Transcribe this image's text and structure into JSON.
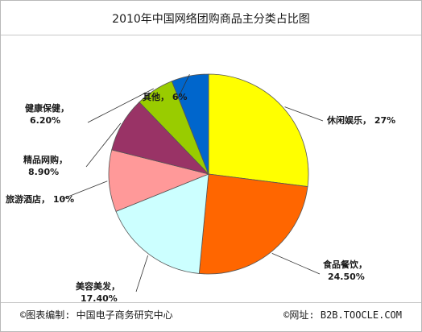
{
  "chart_data": {
    "type": "pie",
    "title": "2010年中国网络团购商品主分类占比图",
    "categories": [
      "休闲娱乐",
      "食品餐饮",
      "美容美发",
      "旅游酒店",
      "精品网购",
      "健康保健",
      "其他"
    ],
    "values": [
      27,
      24.5,
      17.4,
      10,
      8.9,
      6.2,
      6
    ],
    "value_labels": [
      "27%",
      "24.50%",
      "17.40%",
      "10%",
      "8.90%",
      "6.20%",
      "6%"
    ],
    "colors": [
      "#ffff00",
      "#ff6600",
      "#ccffff",
      "#ff9999",
      "#993366",
      "#99cc00",
      "#0066cc"
    ],
    "start": "12 o'clock",
    "direction": "clockwise",
    "legend": "none (leader-line labels)"
  },
  "footer": {
    "left": "©图表编制: 中国电子商务研究中心",
    "right": "©网址: B2B.TOOCLE.COM"
  }
}
